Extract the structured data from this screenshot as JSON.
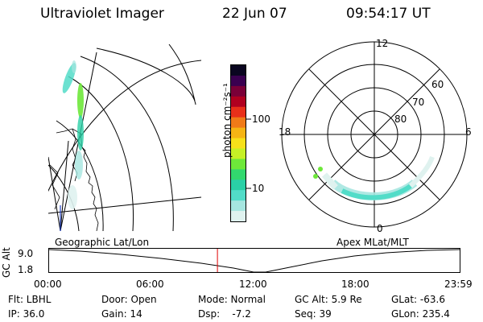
{
  "header": {
    "instrument": "Ultraviolet Imager",
    "date": "22 Jun 07",
    "time": "09:54:17 UT"
  },
  "colorbar": {
    "unit_label": "photon cm⁻²s⁻¹",
    "ticks": [
      "100",
      "10"
    ],
    "colors": [
      "#0a0620",
      "#3a0050",
      "#7a0038",
      "#b00020",
      "#e8301a",
      "#f07a18",
      "#f5b414",
      "#f6e01a",
      "#c6f026",
      "#6ee83a",
      "#32d86e",
      "#2ad0a6",
      "#52dcc8",
      "#a6e6e0",
      "#dff2ef"
    ]
  },
  "geographic_panel": {
    "label": "Geographic Lat/Lon"
  },
  "polar_panel": {
    "label": "Apex MLat/MLT",
    "mlt_labels": {
      "top": "12",
      "left": "18",
      "right": "6",
      "bottom": "0"
    },
    "lat_labels": [
      "60",
      "70",
      "80"
    ]
  },
  "altitude_plot": {
    "axis_label": "GC Alt",
    "y_ticks": [
      "9.0",
      "1.8"
    ],
    "x_ticks": [
      "00:00",
      "06:00",
      "12:00",
      "18:00",
      "23:59"
    ],
    "current_time_fraction": 0.41,
    "marker_color": "#e00000"
  },
  "status": {
    "filter": "Flt: LBHL",
    "ip": "IP: 36.0",
    "door": "Door: Open",
    "gain": "Gain: 14",
    "mode": "Mode: Normal",
    "dsp": "Dsp:    -7.2",
    "gc_alt": "GC Alt: 5.9 Re",
    "seq": "Seq: 39",
    "glat": "GLat: -63.6",
    "glon": "GLon: 235.4"
  }
}
